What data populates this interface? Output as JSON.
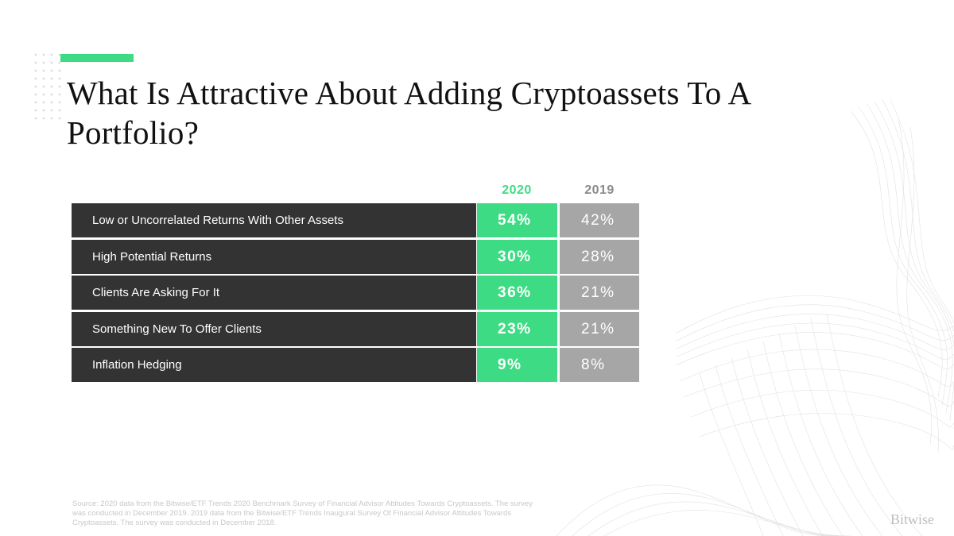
{
  "title": "What Is Attractive About Adding Cryptoassets To A Portfolio?",
  "source": "Source: 2020 data from the Bitwise/ETF Trends 2020 Benchmark Survey of Financial Advisor Attitudes Towards Cryptoassets. The survey was conducted in December 2019. 2019 data from the Bitwise/ETF Trends Inaugural Survey Of Financial Advisor Attitudes Towards Cryptoassets. The survey was conducted in December 2018.",
  "logo": "Bitwise",
  "colors": {
    "accent_2020": "#3ddc84",
    "cell_2019": "#a6a6a6",
    "label_bg": "#333333"
  },
  "chart_data": {
    "type": "table",
    "title": "What Is Attractive About Adding Cryptoassets To A Portfolio?",
    "columns": [
      "2020",
      "2019"
    ],
    "rows": [
      {
        "label": "Low or Uncorrelated Returns With Other Assets",
        "v2020": "54%",
        "v2019": "42%"
      },
      {
        "label": "High Potential Returns",
        "v2020": "30%",
        "v2019": "28%"
      },
      {
        "label": "Clients Are Asking For It",
        "v2020": "36%",
        "v2019": "21%"
      },
      {
        "label": "Something New To Offer Clients",
        "v2020": "23%",
        "v2019": "21%"
      },
      {
        "label": "Inflation Hedging",
        "v2020": "9%",
        "v2019": "8%"
      }
    ]
  }
}
